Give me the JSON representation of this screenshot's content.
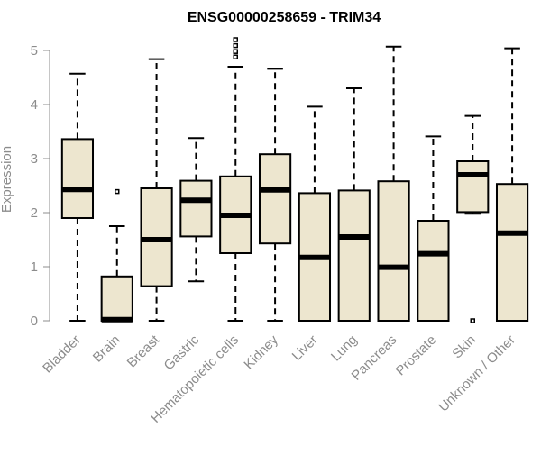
{
  "chart_data": {
    "type": "boxplot",
    "title": "ENSG00000258659 - TRIM34",
    "ylabel": "Expression",
    "xlabel": "",
    "ylim": [
      0,
      5
    ],
    "yticks": [
      0,
      1,
      2,
      3,
      4,
      5
    ],
    "grid": false,
    "legend": "none",
    "box_fill": "#ede6cf",
    "categories": [
      "Bladder",
      "Brain",
      "Breast",
      "Gastric",
      "Hematopoietic cells",
      "Kidney",
      "Liver",
      "Lung",
      "Pancreas",
      "Prostate",
      "Skin",
      "Unknown / Other"
    ],
    "boxes": [
      {
        "category": "Bladder",
        "whisker_low": 0.0,
        "q1": 1.9,
        "median": 2.43,
        "q3": 3.36,
        "whisker_high": 4.57,
        "outliers": []
      },
      {
        "category": "Brain",
        "whisker_low": 0.0,
        "q1": 0.0,
        "median": 0.02,
        "q3": 0.82,
        "whisker_high": 1.75,
        "outliers": [
          2.39
        ]
      },
      {
        "category": "Breast",
        "whisker_low": 0.0,
        "q1": 0.64,
        "median": 1.5,
        "q3": 2.45,
        "whisker_high": 4.84,
        "outliers": []
      },
      {
        "category": "Gastric",
        "whisker_low": 0.73,
        "q1": 1.56,
        "median": 2.23,
        "q3": 2.59,
        "whisker_high": 3.38,
        "outliers": []
      },
      {
        "category": "Hematopoietic cells",
        "whisker_low": 0.0,
        "q1": 1.25,
        "median": 1.95,
        "q3": 2.67,
        "whisker_high": 4.7,
        "outliers": [
          4.88,
          4.98,
          5.09,
          5.2
        ]
      },
      {
        "category": "Kidney",
        "whisker_low": 0.0,
        "q1": 1.43,
        "median": 2.42,
        "q3": 3.08,
        "whisker_high": 4.66,
        "outliers": []
      },
      {
        "category": "Liver",
        "whisker_low": 0.0,
        "q1": 0.0,
        "median": 1.17,
        "q3": 2.36,
        "whisker_high": 3.96,
        "outliers": []
      },
      {
        "category": "Lung",
        "whisker_low": 0.0,
        "q1": 0.0,
        "median": 1.55,
        "q3": 2.41,
        "whisker_high": 4.3,
        "outliers": []
      },
      {
        "category": "Pancreas",
        "whisker_low": 0.0,
        "q1": 0.0,
        "median": 0.99,
        "q3": 2.58,
        "whisker_high": 5.07,
        "outliers": []
      },
      {
        "category": "Prostate",
        "whisker_low": 0.0,
        "q1": 0.0,
        "median": 1.24,
        "q3": 1.85,
        "whisker_high": 3.41,
        "outliers": []
      },
      {
        "category": "Skin",
        "whisker_low": 1.98,
        "q1": 2.01,
        "median": 2.7,
        "q3": 2.95,
        "whisker_high": 3.79,
        "outliers": [
          0.0
        ]
      },
      {
        "category": "Unknown / Other",
        "whisker_low": 0.0,
        "q1": 0.0,
        "median": 1.62,
        "q3": 2.53,
        "whisker_high": 5.04,
        "outliers": []
      }
    ]
  }
}
